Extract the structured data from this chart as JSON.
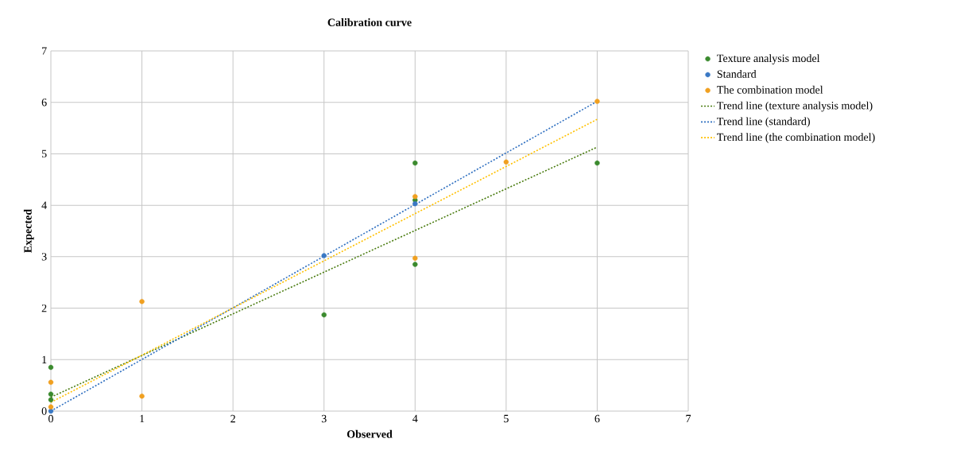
{
  "chart_data": {
    "type": "scatter",
    "title": "Calibration curve",
    "xlabel": "Observed",
    "ylabel": "Expected",
    "xlim": [
      0,
      7
    ],
    "ylim": [
      0,
      7
    ],
    "xticks": [
      0,
      1,
      2,
      3,
      4,
      5,
      6,
      7
    ],
    "yticks": [
      0,
      1,
      2,
      3,
      4,
      5,
      6,
      7
    ],
    "grid": true,
    "legend": "right",
    "series": [
      {
        "name": "Texture analysis model",
        "marker": "circle",
        "color": "#3b8a2e",
        "x": [
          0,
          0,
          0,
          3,
          4,
          4,
          4,
          6
        ],
        "values": [
          0.85,
          0.33,
          0.22,
          1.87,
          2.85,
          4.1,
          4.82,
          4.82
        ]
      },
      {
        "name": "Standard",
        "marker": "circle",
        "color": "#3a78c4",
        "x": [
          0,
          3,
          4
        ],
        "values": [
          0,
          3.02,
          4.03
        ]
      },
      {
        "name": "The combination model",
        "marker": "circle",
        "color": "#f0a020",
        "x": [
          0,
          0,
          1,
          1,
          4,
          4,
          5,
          6
        ],
        "values": [
          0.56,
          0.08,
          2.13,
          0.29,
          2.97,
          4.17,
          4.84,
          6.02
        ]
      },
      {
        "name": "Trend line (texture analysis model)",
        "type": "line",
        "marker": "none",
        "line_style": "dotted",
        "color": "#4a7c10",
        "x": [
          0,
          6
        ],
        "values": [
          0.27,
          5.13
        ]
      },
      {
        "name": "Trend line (standard)",
        "type": "line",
        "marker": "none",
        "line_style": "dotted",
        "color": "#2e6fc0",
        "x": [
          0,
          6
        ],
        "values": [
          0,
          6.02
        ]
      },
      {
        "name": "Trend line (the combination model)",
        "type": "line",
        "marker": "none",
        "line_style": "dotted",
        "color": "#ffc000",
        "x": [
          0,
          6
        ],
        "values": [
          0.17,
          5.67
        ]
      }
    ]
  }
}
